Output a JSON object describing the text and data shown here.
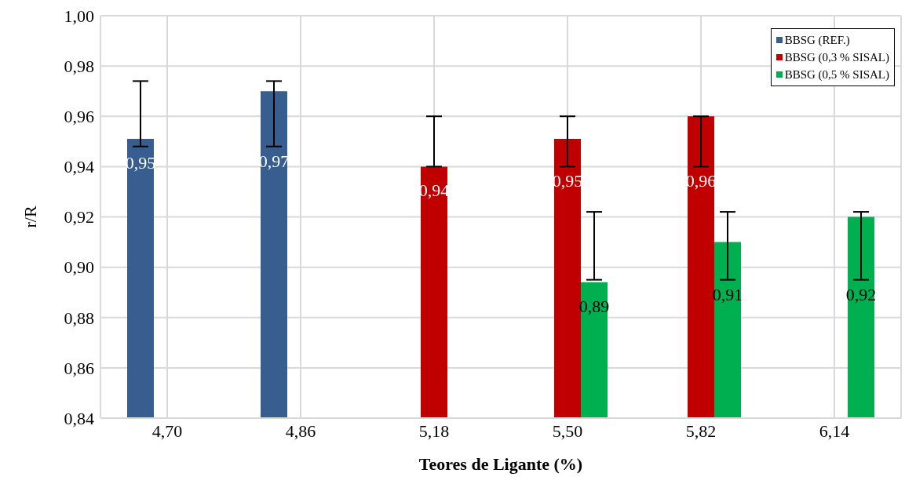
{
  "chart_data": {
    "type": "bar",
    "xlabel": "Teores de Ligante (%)",
    "ylabel": "r/R",
    "categories": [
      "4,70",
      "4,86",
      "5,18",
      "5,50",
      "5,82",
      "6,14"
    ],
    "series": [
      {
        "name": "BBSG (REF.)",
        "color": "#375e8f",
        "values": [
          0.951,
          0.97,
          null,
          null,
          null,
          null
        ],
        "errors": [
          [
            0.948,
            0.974
          ],
          [
            0.948,
            0.974
          ],
          null,
          null,
          null,
          null
        ],
        "value_labels": [
          "0,95",
          "0,97",
          null,
          null,
          null,
          null
        ]
      },
      {
        "name": "BBSG (0,3 % SISAL)",
        "color": "#c00000",
        "values": [
          null,
          null,
          0.94,
          0.951,
          0.96,
          null
        ],
        "errors": [
          null,
          null,
          [
            0.94,
            0.96
          ],
          [
            0.94,
            0.96
          ],
          [
            0.94,
            0.96
          ],
          null
        ],
        "value_labels": [
          null,
          null,
          "0,94",
          "0,95",
          "0,96",
          null
        ]
      },
      {
        "name": "BBSG (0,5 % SISAL)",
        "color": "#00b050",
        "values": [
          null,
          null,
          null,
          0.894,
          0.91,
          0.92
        ],
        "errors": [
          null,
          null,
          null,
          [
            0.895,
            0.922
          ],
          [
            0.895,
            0.922
          ],
          [
            0.895,
            0.922
          ]
        ],
        "value_labels": [
          null,
          null,
          null,
          "0,89",
          "0,91",
          "0,92"
        ]
      }
    ],
    "ylim": [
      0.84,
      1.0
    ],
    "yticks": [
      {
        "value": 0.84,
        "label": "0,84"
      },
      {
        "value": 0.86,
        "label": "0,86"
      },
      {
        "value": 0.88,
        "label": "0,88"
      },
      {
        "value": 0.9,
        "label": "0,90"
      },
      {
        "value": 0.92,
        "label": "0,92"
      },
      {
        "value": 0.94,
        "label": "0,94"
      },
      {
        "value": 0.96,
        "label": "0,96"
      },
      {
        "value": 0.98,
        "label": "0,98"
      },
      {
        "value": 1.0,
        "label": "1,00"
      }
    ],
    "grid": true,
    "legend": "top right"
  }
}
